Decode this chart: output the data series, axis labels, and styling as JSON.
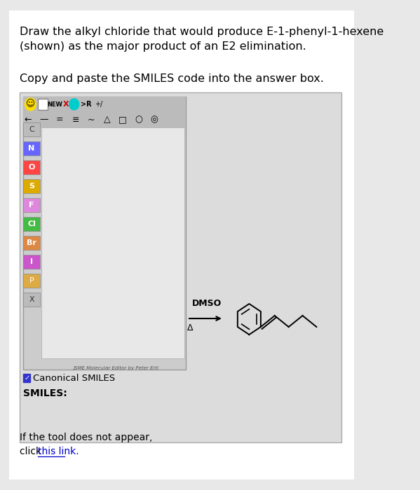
{
  "bg_color": "#e8e8e8",
  "page_bg": "#ffffff",
  "title_text": "Draw the alkyl chloride that would produce E-1-phenyl-1-hexene\n(shown) as the major product of an E2 elimination.",
  "subtitle_text": "Copy and paste the SMILES code into the answer box.",
  "jsme_footer_text": "JSME Molecular Editor by Peter Ertl",
  "canonical_smiles_label": "☑ Canonical SMILES",
  "smiles_label": "SMILES:",
  "footer_line1": "If the tool does not appear,",
  "footer_line2_prefix": "click ",
  "footer_link": "this link.",
  "arrow_label_top": "DMSO",
  "arrow_label_bottom": "Δ",
  "jsme_sidebar_items": [
    "C",
    "N",
    "O",
    "S",
    "F",
    "Cl",
    "Br",
    "I",
    "P",
    "X"
  ],
  "jsme_sidebar_text_colors": [
    "#333333",
    "#0000cc",
    "#cc0000",
    "#ddaa00",
    "#cc00cc",
    "#00aa00",
    "#cc6600",
    "#aa00cc",
    "#dd8800",
    "#333333"
  ],
  "toolbar_row2": [
    "←",
    "—",
    "=",
    "≡",
    "~",
    "△",
    "□",
    "□",
    "○",
    "◎"
  ]
}
